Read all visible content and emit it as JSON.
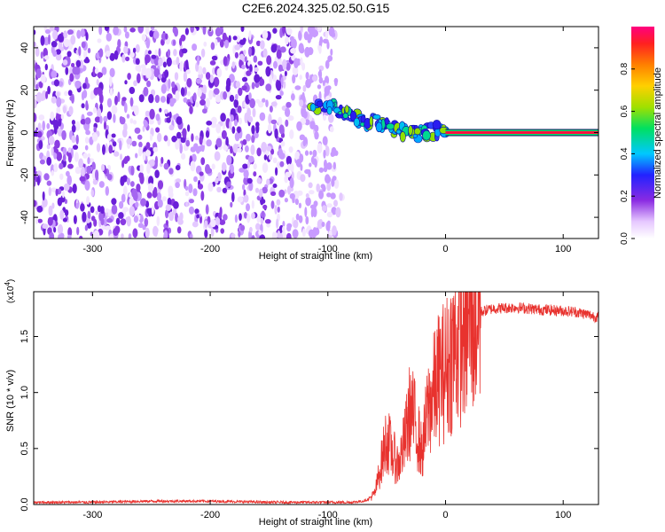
{
  "title": "C2E6.2024.325.02.50.G15",
  "chart_data": [
    {
      "type": "heatmap",
      "xlabel": "Height of straight line (km)",
      "ylabel": "Frequency (Hz)",
      "xlim": [
        -350,
        130
      ],
      "ylim": [
        -50,
        50
      ],
      "xticks": [
        -300,
        -200,
        -100,
        0,
        100
      ],
      "xtick_labels": [
        "-300",
        "-200",
        "-100",
        "0",
        "100"
      ],
      "yticks": [
        -40,
        -20,
        0,
        20,
        40
      ],
      "ytick_labels": [
        "-40",
        "-20",
        "0",
        "20",
        "40"
      ],
      "colorbar": {
        "label": "Normalized spectral amplitude",
        "range": [
          0,
          1
        ],
        "ticks": [
          0.0,
          0.2,
          0.4,
          0.6,
          0.8
        ],
        "tick_labels": [
          "0.0",
          "0.2",
          "0.4",
          "0.6",
          "0.8"
        ]
      },
      "regions": [
        {
          "name": "noise",
          "x_range": [
            -350,
            -92
          ],
          "freq_range": [
            -50,
            50
          ],
          "amplitude": 0.1
        },
        {
          "name": "signal-trail",
          "points": [
            [
              -115,
              12
            ],
            [
              -100,
              12
            ],
            [
              -90,
              10
            ],
            [
              -80,
              8
            ],
            [
              -70,
              6
            ],
            [
              -60,
              5
            ],
            [
              -50,
              3
            ],
            [
              -40,
              1
            ],
            [
              -30,
              0
            ],
            [
              -20,
              0
            ],
            [
              -10,
              1
            ],
            [
              0,
              0
            ]
          ],
          "amplitude": 0.35
        },
        {
          "name": "carrier",
          "x_range": [
            0,
            130
          ],
          "freq": 0,
          "amplitude": 1.0
        }
      ],
      "grid": false
    },
    {
      "type": "line",
      "xlabel": "Height of straight line (km)",
      "ylabel": "SNR (10 * v/v)",
      "multiplier_label": "(x10",
      "multiplier_exponent": "4",
      "xlim": [
        -350,
        130
      ],
      "ylim": [
        0,
        1.9
      ],
      "xticks": [
        -300,
        -200,
        -100,
        0,
        100
      ],
      "xtick_labels": [
        "-300",
        "-200",
        "-100",
        "0",
        "100"
      ],
      "yticks": [
        0.0,
        0.5,
        1.0,
        1.5
      ],
      "ytick_labels": [
        "0.0",
        "0.5",
        "1.0",
        "1.5"
      ],
      "color": "#e8322e",
      "x": [
        -350,
        -300,
        -250,
        -200,
        -150,
        -100,
        -80,
        -70,
        -65,
        -60,
        -55,
        -50,
        -45,
        -40,
        -35,
        -30,
        -25,
        -20,
        -15,
        -10,
        -5,
        0,
        5,
        10,
        15,
        20,
        30,
        40,
        60,
        80,
        100,
        110,
        120,
        130
      ],
      "y": [
        0.02,
        0.02,
        0.03,
        0.03,
        0.02,
        0.02,
        0.02,
        0.03,
        0.05,
        0.1,
        0.35,
        0.6,
        0.45,
        0.35,
        0.55,
        0.85,
        0.7,
        0.45,
        0.85,
        1.0,
        1.15,
        1.2,
        1.35,
        1.45,
        1.55,
        1.65,
        1.72,
        1.75,
        1.76,
        1.74,
        1.73,
        1.72,
        1.7,
        1.67
      ],
      "grid": false
    }
  ]
}
